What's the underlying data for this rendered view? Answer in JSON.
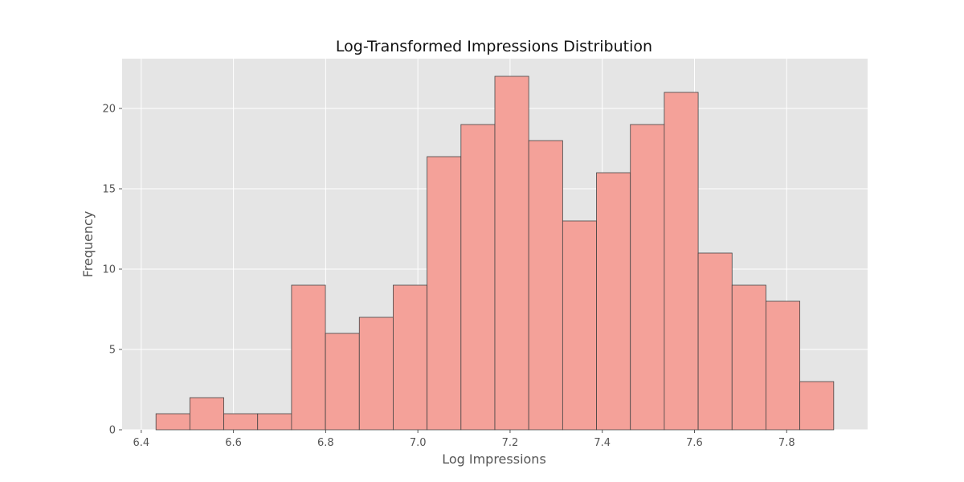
{
  "chart_data": {
    "type": "bar",
    "title": "Log-Transformed Impressions Distribution",
    "xlabel": "Log Impressions",
    "ylabel": "Frequency",
    "bin_edges": [
      6.432,
      6.5055,
      6.579,
      6.6525,
      6.726,
      6.7995,
      6.873,
      6.9465,
      7.02,
      7.0935,
      7.167,
      7.2405,
      7.314,
      7.3875,
      7.461,
      7.5345,
      7.608,
      7.6815,
      7.755,
      7.8285,
      7.902
    ],
    "values": [
      1,
      2,
      1,
      1,
      9,
      6,
      7,
      9,
      17,
      19,
      22,
      18,
      13,
      16,
      19,
      21,
      11,
      9,
      8,
      3
    ],
    "xlim": [
      6.3585,
      7.9755
    ],
    "ylim": [
      0,
      23.1
    ],
    "x_ticks": [
      6.4,
      6.6,
      6.8,
      7.0,
      7.2,
      7.4,
      7.6,
      7.8
    ],
    "x_tick_labels": [
      "6.4",
      "6.6",
      "6.8",
      "7.0",
      "7.2",
      "7.4",
      "7.6",
      "7.8"
    ],
    "y_ticks": [
      0,
      5,
      10,
      15,
      20
    ],
    "y_tick_labels": [
      "0",
      "5",
      "10",
      "15",
      "20"
    ],
    "grid": true,
    "colors": {
      "bar_fill": "#f4a199",
      "bar_edge": "#444444",
      "plot_background": "#e5e5e5",
      "grid": "#ffffff"
    }
  }
}
